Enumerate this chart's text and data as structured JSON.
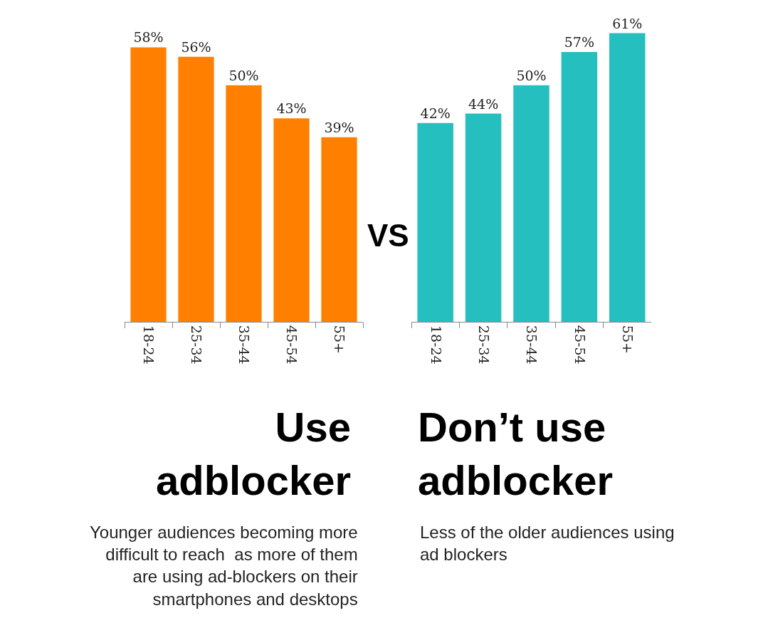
{
  "chart_data": [
    {
      "type": "bar",
      "title": "Use adblocker",
      "subtitle": "Younger audiences becoming more difficult to reach  as more of them are using ad-blockers on their smartphones and desktops",
      "categories": [
        "18-24",
        "25-34",
        "35-44",
        "45-54",
        "55+"
      ],
      "values": [
        58,
        56,
        50,
        43,
        39
      ],
      "value_labels": [
        "58%",
        "56%",
        "50%",
        "43%",
        "39%"
      ],
      "color": "#ff8000",
      "ylim": [
        0,
        68
      ],
      "tick_labels": "x",
      "annotations": [
        "VS"
      ]
    },
    {
      "type": "bar",
      "title": "Don’t use adblocker",
      "subtitle": "Less of the older audiences using ad blockers",
      "categories": [
        "18-24",
        "25-34",
        "35-44",
        "45-54",
        "55+"
      ],
      "values": [
        42,
        44,
        50,
        57,
        61
      ],
      "value_labels": [
        "42%",
        "44%",
        "50%",
        "57%",
        "61%"
      ],
      "color": "#26bfbf",
      "ylim": [
        0,
        68
      ],
      "tick_labels": "x"
    }
  ]
}
